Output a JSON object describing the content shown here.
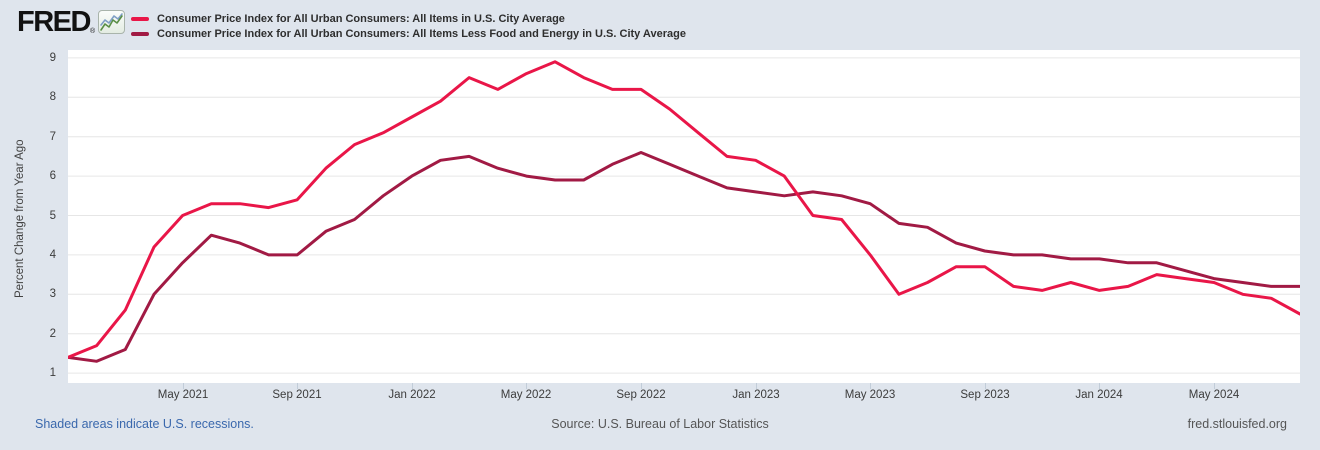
{
  "header": {
    "logo_text": "FRED",
    "logo_registered": "®",
    "legend": [
      {
        "label": "Consumer Price Index for All Urban Consumers: All Items in U.S. City Average",
        "color": "#e91648"
      },
      {
        "label": "Consumer Price Index for All Urban Consumers: All Items Less Food and Energy in U.S. City Average",
        "color": "#a11a44"
      }
    ]
  },
  "footer": {
    "recession_note": "Shaded areas indicate U.S. recessions.",
    "source": "Source: U.S. Bureau of Labor Statistics",
    "site": "fred.stlouisfed.org"
  },
  "chart_data": {
    "type": "line",
    "title": "",
    "xlabel": "",
    "ylabel": "Percent Change from Year Ago",
    "ylim": [
      0.75,
      9.2
    ],
    "yticks": [
      1,
      2,
      3,
      4,
      5,
      6,
      7,
      8,
      9
    ],
    "grid": true,
    "legend_position": "top",
    "categories": [
      "Jan 2021",
      "Feb 2021",
      "Mar 2021",
      "Apr 2021",
      "May 2021",
      "Jun 2021",
      "Jul 2021",
      "Aug 2021",
      "Sep 2021",
      "Oct 2021",
      "Nov 2021",
      "Dec 2021",
      "Jan 2022",
      "Feb 2022",
      "Mar 2022",
      "Apr 2022",
      "May 2022",
      "Jun 2022",
      "Jul 2022",
      "Aug 2022",
      "Sep 2022",
      "Oct 2022",
      "Nov 2022",
      "Dec 2022",
      "Jan 2023",
      "Feb 2023",
      "Mar 2023",
      "Apr 2023",
      "May 2023",
      "Jun 2023",
      "Jul 2023",
      "Aug 2023",
      "Sep 2023",
      "Oct 2023",
      "Nov 2023",
      "Dec 2023",
      "Jan 2024",
      "Feb 2024",
      "Mar 2024",
      "Apr 2024",
      "May 2024",
      "Jun 2024",
      "Jul 2024",
      "Aug 2024"
    ],
    "xtick_labels": [
      "May 2021",
      "Sep 2021",
      "Jan 2022",
      "May 2022",
      "Sep 2022",
      "Jan 2023",
      "May 2023",
      "Sep 2023",
      "Jan 2024",
      "May 2024"
    ],
    "xtick_indices": [
      4,
      8,
      12,
      16,
      20,
      24,
      28,
      32,
      36,
      40
    ],
    "series": [
      {
        "name": "Consumer Price Index for All Urban Consumers: All Items in U.S. City Average",
        "color": "#e91648",
        "values": [
          1.4,
          1.7,
          2.6,
          4.2,
          5.0,
          5.3,
          5.3,
          5.2,
          5.4,
          6.2,
          6.8,
          7.1,
          7.5,
          7.9,
          8.5,
          8.2,
          8.6,
          8.9,
          8.5,
          8.2,
          8.2,
          7.7,
          7.1,
          6.5,
          6.4,
          6.0,
          5.0,
          4.9,
          4.0,
          3.0,
          3.3,
          3.7,
          3.7,
          3.2,
          3.1,
          3.3,
          3.1,
          3.2,
          3.5,
          3.4,
          3.3,
          3.0,
          2.9,
          2.5
        ]
      },
      {
        "name": "Consumer Price Index for All Urban Consumers: All Items Less Food and Energy in U.S. City Average",
        "color": "#a11a44",
        "values": [
          1.4,
          1.3,
          1.6,
          3.0,
          3.8,
          4.5,
          4.3,
          4.0,
          4.0,
          4.6,
          4.9,
          5.5,
          6.0,
          6.4,
          6.5,
          6.2,
          6.0,
          5.9,
          5.9,
          6.3,
          6.6,
          6.3,
          6.0,
          5.7,
          5.6,
          5.5,
          5.6,
          5.5,
          5.3,
          4.8,
          4.7,
          4.3,
          4.1,
          4.0,
          4.0,
          3.9,
          3.9,
          3.8,
          3.8,
          3.6,
          3.4,
          3.3,
          3.2,
          3.2
        ]
      }
    ]
  }
}
